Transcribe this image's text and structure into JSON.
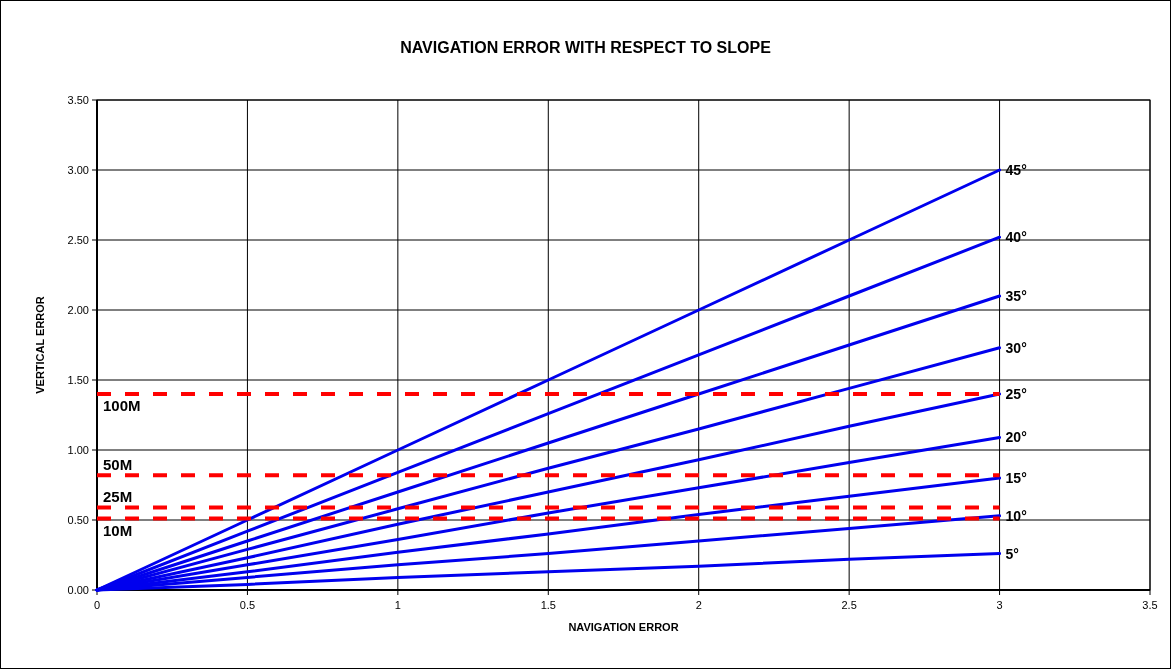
{
  "chart_data": {
    "type": "line",
    "title": "NAVIGATION ERROR WITH RESPECT TO SLOPE",
    "xlabel": "NAVIGATION ERROR",
    "ylabel": "VERTICAL ERROR",
    "x": [
      0,
      0.5,
      1,
      1.5,
      2,
      2.5,
      3
    ],
    "xlim": [
      0,
      3.5
    ],
    "xticks": [
      0,
      0.5,
      1,
      1.5,
      2,
      2.5,
      3,
      3.5
    ],
    "ylim": [
      0,
      3.5
    ],
    "yticks": [
      {
        "value": 0,
        "label": "0.00"
      },
      {
        "value": 0.5,
        "label": "0.50"
      },
      {
        "value": 1,
        "label": "1.00"
      },
      {
        "value": 1.5,
        "label": "1.50"
      },
      {
        "value": 2,
        "label": "2.00"
      },
      {
        "value": 2.5,
        "label": "2.50"
      },
      {
        "value": 3,
        "label": "3.00"
      },
      {
        "value": 3.5,
        "label": "3.50"
      }
    ],
    "grid": true,
    "marker": "none",
    "line_style": "solid",
    "series": [
      {
        "name": "45°",
        "color": "#0000ee",
        "values": [
          0,
          0.5,
          1,
          1.5,
          2,
          2.5,
          3
        ]
      },
      {
        "name": "40°",
        "color": "#0000ee",
        "values": [
          0,
          0.42,
          0.84,
          1.26,
          1.68,
          2.1,
          2.52
        ]
      },
      {
        "name": "35°",
        "color": "#0000ee",
        "values": [
          0,
          0.35,
          0.7,
          1.05,
          1.4,
          1.75,
          2.1
        ]
      },
      {
        "name": "30°",
        "color": "#0000ee",
        "values": [
          0,
          0.29,
          0.58,
          0.87,
          1.15,
          1.44,
          1.73
        ]
      },
      {
        "name": "25°",
        "color": "#0000ee",
        "values": [
          0,
          0.23,
          0.47,
          0.7,
          0.93,
          1.17,
          1.4
        ]
      },
      {
        "name": "20°",
        "color": "#0000ee",
        "values": [
          0,
          0.18,
          0.36,
          0.55,
          0.73,
          0.91,
          1.09
        ]
      },
      {
        "name": "15°",
        "color": "#0000ee",
        "values": [
          0,
          0.13,
          0.27,
          0.4,
          0.54,
          0.67,
          0.8
        ]
      },
      {
        "name": "10°",
        "color": "#0000ee",
        "values": [
          0,
          0.09,
          0.18,
          0.26,
          0.35,
          0.44,
          0.53
        ]
      },
      {
        "name": "5°",
        "color": "#0000ee",
        "values": [
          0,
          0.04,
          0.09,
          0.13,
          0.17,
          0.22,
          0.26
        ]
      }
    ],
    "ref_lines": [
      {
        "axis": "y",
        "value": 1.4,
        "label": "100M",
        "color": "#ff0000",
        "line_style": "dashed"
      },
      {
        "axis": "y",
        "value": 0.82,
        "label": "50M",
        "color": "#ff0000",
        "line_style": "dashed"
      },
      {
        "axis": "y",
        "value": 0.59,
        "label": "25M",
        "color": "#ff0000",
        "line_style": "dashed"
      },
      {
        "axis": "y",
        "value": 0.51,
        "label": "10M",
        "color": "#ff0000",
        "line_style": "dashed"
      }
    ]
  }
}
